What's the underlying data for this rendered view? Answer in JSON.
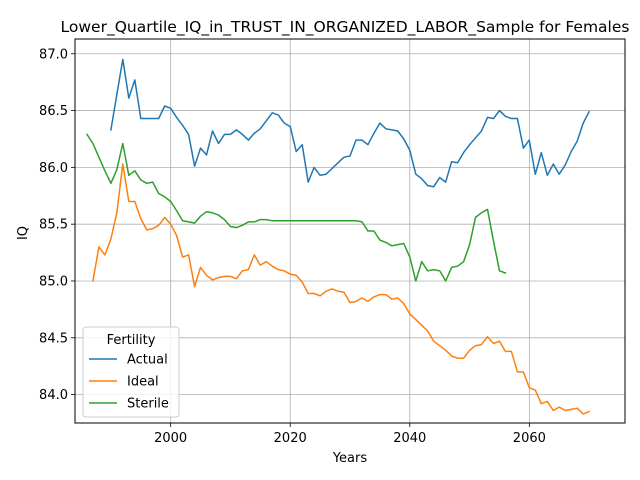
{
  "chart_data": {
    "type": "line",
    "title": "Lower_Quartile_IQ_in_TRUST_IN_ORGANIZED_LABOR_Sample for Females",
    "xlabel": "Years",
    "ylabel": "IQ",
    "xlim": [
      1984,
      2076
    ],
    "ylim": [
      83.75,
      87.13
    ],
    "xticks": [
      2000,
      2020,
      2040,
      2060
    ],
    "yticks": [
      84.0,
      84.5,
      85.0,
      85.5,
      86.0,
      86.5,
      87.0
    ],
    "grid": true,
    "legend": {
      "title": "Fertility",
      "position": "lower-left"
    },
    "series": [
      {
        "name": "Actual",
        "color": "#1f77b4",
        "x": [
          1990,
          1991,
          1992,
          1993,
          1994,
          1995,
          1996,
          1997,
          1998,
          1999,
          2000,
          2001,
          2002,
          2003,
          2004,
          2005,
          2006,
          2007,
          2008,
          2009,
          2010,
          2011,
          2012,
          2013,
          2014,
          2015,
          2016,
          2017,
          2018,
          2019,
          2020,
          2021,
          2022,
          2023,
          2024,
          2025,
          2026,
          2027,
          2028,
          2029,
          2030,
          2031,
          2032,
          2033,
          2034,
          2035,
          2036,
          2037,
          2038,
          2039,
          2040,
          2041,
          2042,
          2043,
          2044,
          2045,
          2046,
          2047,
          2048,
          2049,
          2050,
          2051,
          2052,
          2053,
          2054,
          2055,
          2056,
          2057,
          2058,
          2059,
          2060,
          2061,
          2062,
          2063,
          2064,
          2065,
          2066,
          2067,
          2068,
          2069,
          2070
        ],
        "values": [
          86.33,
          86.64,
          86.95,
          86.61,
          86.77,
          86.43,
          86.43,
          86.43,
          86.43,
          86.54,
          86.52,
          86.44,
          86.37,
          86.29,
          86.01,
          86.17,
          86.11,
          86.32,
          86.21,
          86.29,
          86.29,
          86.33,
          86.29,
          86.24,
          86.3,
          86.34,
          86.41,
          86.48,
          86.46,
          86.39,
          86.36,
          86.14,
          86.2,
          85.87,
          86.0,
          85.93,
          85.94,
          85.99,
          86.04,
          86.09,
          86.1,
          86.24,
          86.24,
          86.2,
          86.3,
          86.39,
          86.34,
          86.33,
          86.32,
          86.25,
          86.15,
          85.94,
          85.9,
          85.84,
          85.83,
          85.91,
          85.87,
          86.05,
          86.04,
          86.13,
          86.2,
          86.26,
          86.32,
          86.44,
          86.43,
          86.5,
          86.45,
          86.43,
          86.43,
          86.17,
          86.24,
          85.94,
          86.13,
          85.93,
          86.03,
          85.94,
          86.02,
          86.14,
          86.23,
          86.39,
          86.49
        ]
      },
      {
        "name": "Ideal",
        "color": "#ff7f0e",
        "x": [
          1987,
          1988,
          1989,
          1990,
          1991,
          1992,
          1993,
          1994,
          1995,
          1996,
          1997,
          1998,
          1999,
          2000,
          2001,
          2002,
          2003,
          2004,
          2005,
          2006,
          2007,
          2008,
          2009,
          2010,
          2011,
          2012,
          2013,
          2014,
          2015,
          2016,
          2017,
          2018,
          2019,
          2020,
          2021,
          2022,
          2023,
          2024,
          2025,
          2026,
          2027,
          2028,
          2029,
          2030,
          2031,
          2032,
          2033,
          2034,
          2035,
          2036,
          2037,
          2038,
          2039,
          2040,
          2041,
          2042,
          2043,
          2044,
          2045,
          2046,
          2047,
          2048,
          2049,
          2050,
          2051,
          2052,
          2053,
          2054,
          2055,
          2056,
          2057,
          2058,
          2059,
          2060,
          2061,
          2062,
          2063,
          2064,
          2065,
          2066,
          2067,
          2068,
          2069,
          2070
        ],
        "values": [
          85.0,
          85.3,
          85.23,
          85.37,
          85.6,
          86.03,
          85.7,
          85.7,
          85.55,
          85.45,
          85.46,
          85.49,
          85.56,
          85.5,
          85.4,
          85.21,
          85.23,
          84.95,
          85.12,
          85.05,
          85.01,
          85.03,
          85.04,
          85.04,
          85.02,
          85.09,
          85.1,
          85.23,
          85.14,
          85.17,
          85.13,
          85.1,
          85.09,
          85.06,
          85.05,
          84.99,
          84.89,
          84.89,
          84.87,
          84.91,
          84.93,
          84.91,
          84.9,
          84.81,
          84.82,
          84.85,
          84.82,
          84.86,
          84.88,
          84.88,
          84.84,
          84.85,
          84.8,
          84.71,
          84.66,
          84.61,
          84.56,
          84.47,
          84.43,
          84.39,
          84.34,
          84.32,
          84.32,
          84.39,
          84.43,
          84.44,
          84.51,
          84.45,
          84.47,
          84.38,
          84.38,
          84.2,
          84.2,
          84.06,
          84.04,
          83.92,
          83.94,
          83.86,
          83.89,
          83.86,
          83.87,
          83.88,
          83.83,
          83.85
        ]
      },
      {
        "name": "Sterile",
        "color": "#2ca02c",
        "x": [
          1986,
          1987,
          1988,
          1989,
          1990,
          1991,
          1992,
          1993,
          1994,
          1995,
          1996,
          1997,
          1998,
          1999,
          2000,
          2001,
          2002,
          2003,
          2004,
          2005,
          2006,
          2007,
          2008,
          2009,
          2010,
          2011,
          2012,
          2013,
          2014,
          2015,
          2016,
          2017,
          2018,
          2019,
          2020,
          2021,
          2022,
          2023,
          2024,
          2025,
          2026,
          2027,
          2028,
          2029,
          2030,
          2031,
          2032,
          2033,
          2034,
          2035,
          2036,
          2037,
          2038,
          2039,
          2040,
          2041,
          2042,
          2043,
          2044,
          2045,
          2046,
          2047,
          2048,
          2049,
          2050,
          2051,
          2052,
          2053,
          2054,
          2055,
          2056
        ],
        "values": [
          86.29,
          86.21,
          86.09,
          85.97,
          85.86,
          85.98,
          86.21,
          85.93,
          85.97,
          85.89,
          85.86,
          85.87,
          85.77,
          85.74,
          85.7,
          85.62,
          85.53,
          85.52,
          85.51,
          85.57,
          85.61,
          85.6,
          85.58,
          85.54,
          85.48,
          85.47,
          85.49,
          85.52,
          85.52,
          85.54,
          85.54,
          85.53,
          85.53,
          85.53,
          85.53,
          85.53,
          85.53,
          85.53,
          85.53,
          85.53,
          85.53,
          85.53,
          85.53,
          85.53,
          85.53,
          85.53,
          85.52,
          85.44,
          85.44,
          85.36,
          85.34,
          85.31,
          85.32,
          85.33,
          85.21,
          85.0,
          85.17,
          85.09,
          85.1,
          85.09,
          85.0,
          85.12,
          85.13,
          85.17,
          85.32,
          85.56,
          85.6,
          85.63,
          85.35,
          85.09,
          85.07
        ]
      }
    ]
  }
}
